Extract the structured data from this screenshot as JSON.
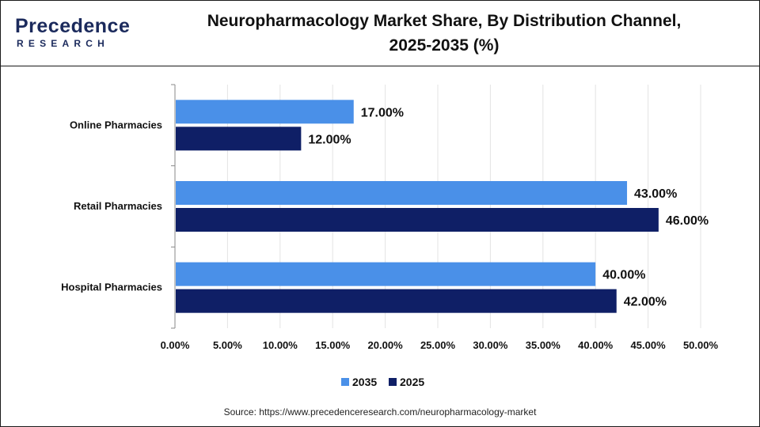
{
  "header": {
    "logo_main": "Precedence",
    "logo_sub": "RESEARCH",
    "title_line1": "Neuropharmacology Market Share, By Distribution Channel,",
    "title_line2": "2025-2035 (%)"
  },
  "source": "Source: https://www.precedenceresearch.com/neuropharmacology-market",
  "colors": {
    "series_2035": "#4a90e8",
    "series_2025": "#0f1f66",
    "grid": "#e3e3e3",
    "axis": "#888888"
  },
  "chart_data": {
    "type": "bar",
    "orientation": "horizontal",
    "title": "Neuropharmacology Market Share, By Distribution Channel, 2025-2035 (%)",
    "categories": [
      "Online Pharmacies",
      "Retail Pharmacies",
      "Hospital Pharmacies"
    ],
    "series": [
      {
        "name": "2035",
        "values": [
          17.0,
          43.0,
          40.0
        ],
        "labels": [
          "17.00%",
          "43.00%",
          "40.00%"
        ]
      },
      {
        "name": "2025",
        "values": [
          12.0,
          46.0,
          42.0
        ],
        "labels": [
          "12.00%",
          "46.00%",
          "42.00%"
        ]
      }
    ],
    "xlim": [
      0,
      50
    ],
    "xticks": [
      "0.00%",
      "5.00%",
      "10.00%",
      "15.00%",
      "20.00%",
      "25.00%",
      "30.00%",
      "35.00%",
      "40.00%",
      "45.00%",
      "50.00%"
    ],
    "grid": true,
    "legend": "bottom-center"
  }
}
